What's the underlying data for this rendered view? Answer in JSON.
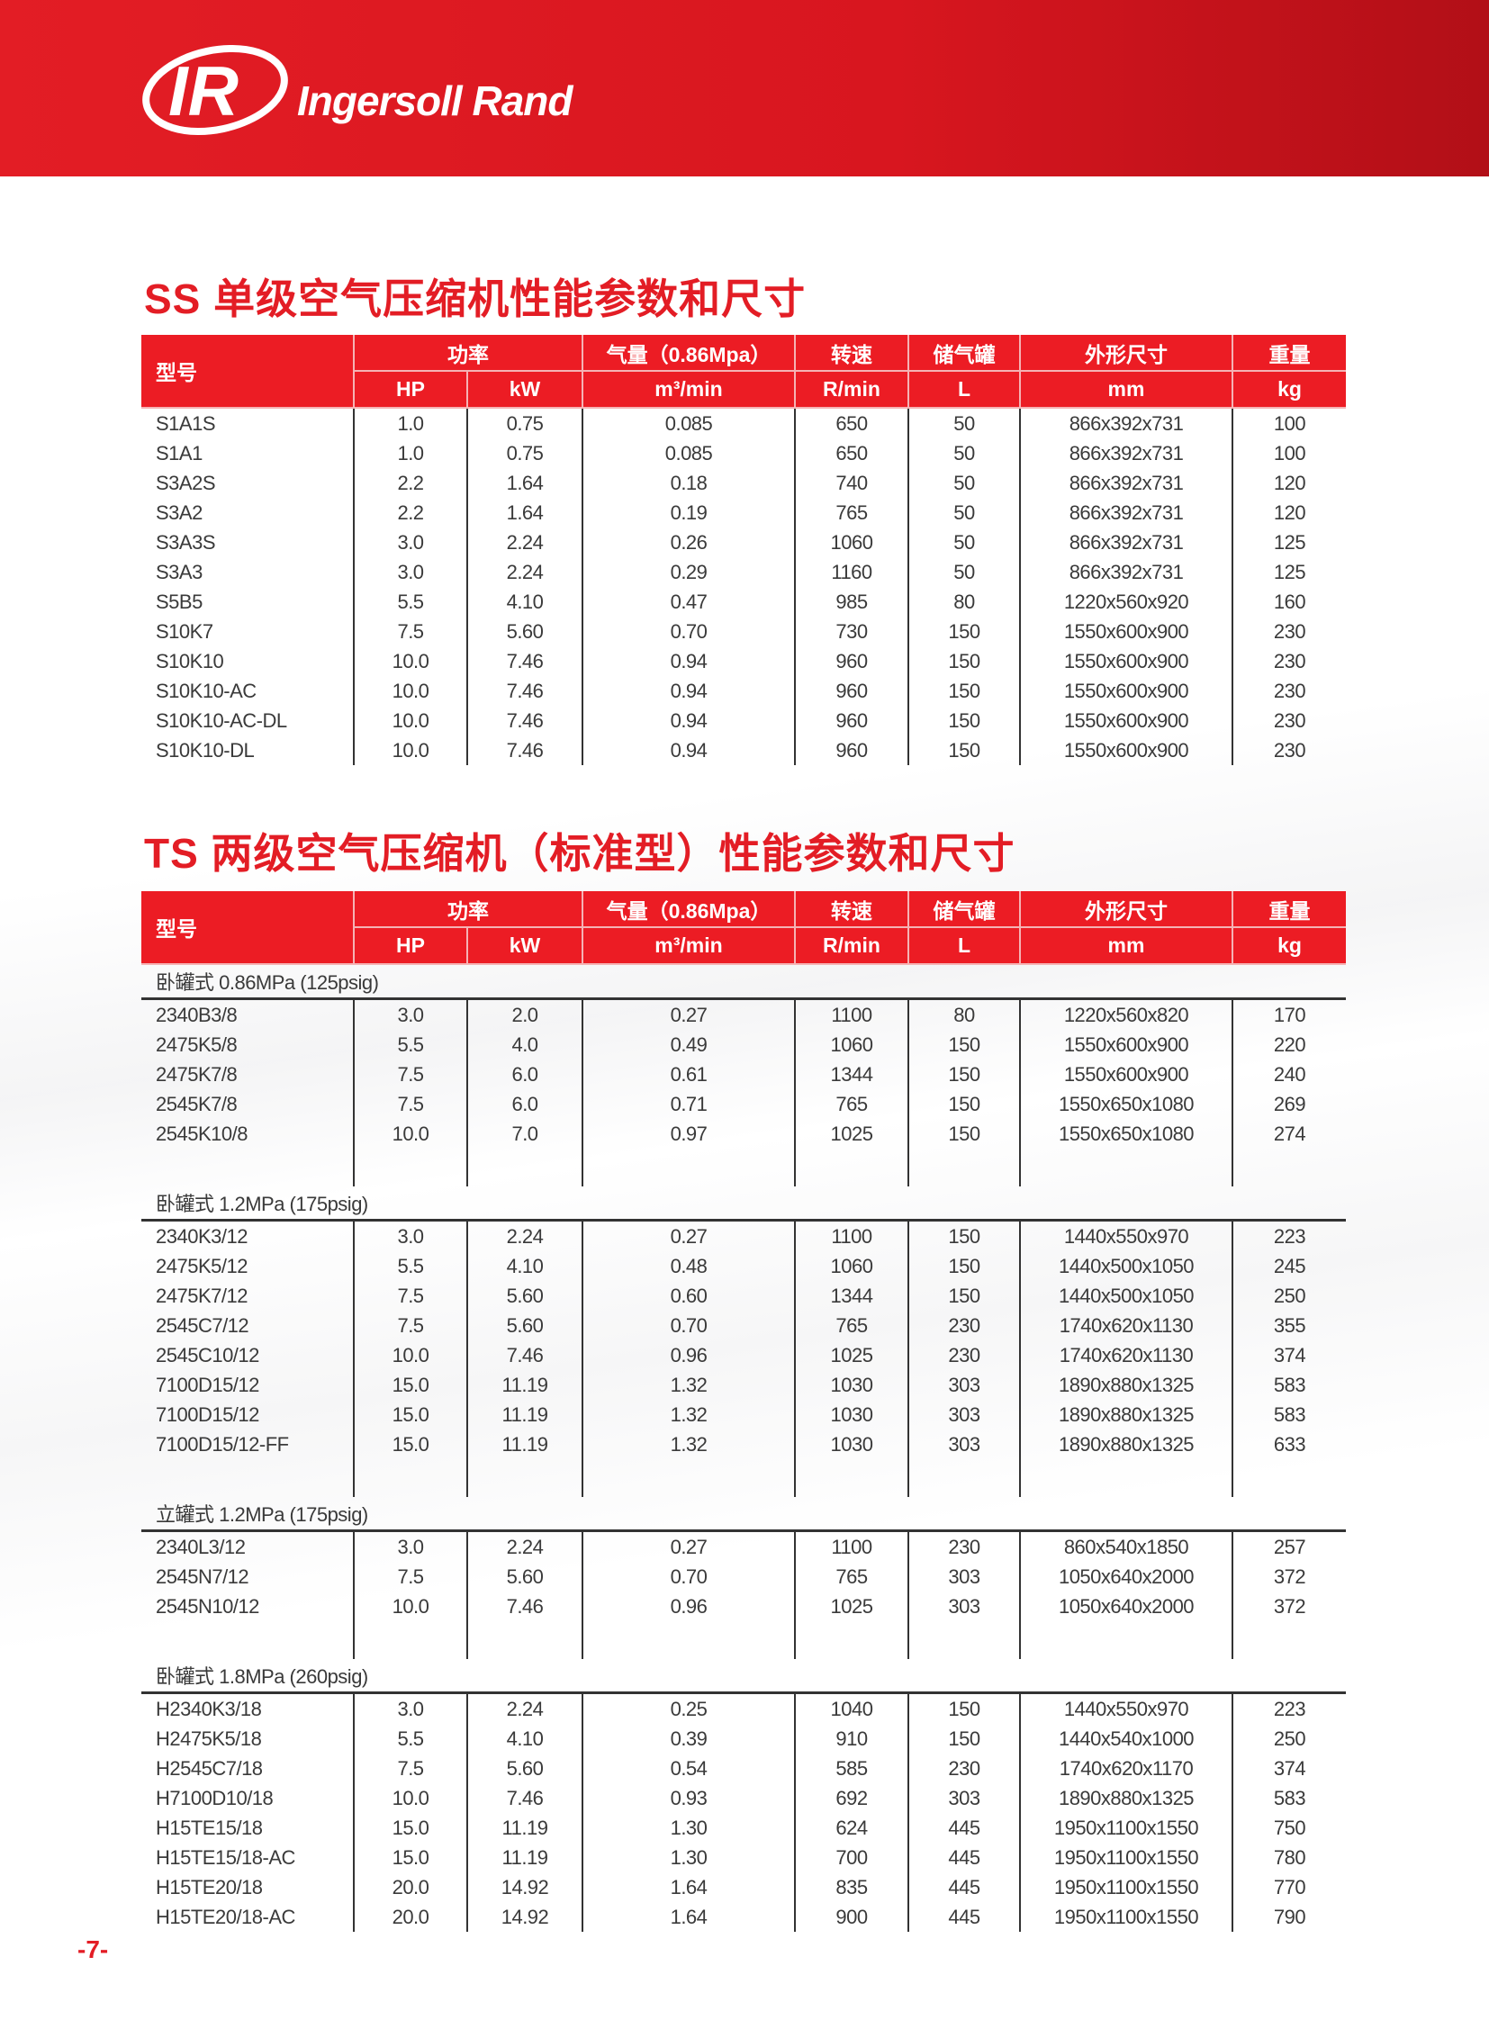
{
  "brand": {
    "name": "Ingersoll Rand",
    "logo_text": "IR",
    "color": "#e31d25"
  },
  "headers": {
    "model": "型号",
    "power": "功率",
    "airflow": "气量（0.86Mpa）",
    "speed": "转速",
    "tank": "储气罐",
    "dimensions": "外形尺寸",
    "weight": "重量",
    "hp": "HP",
    "kw": "kW",
    "m3min": "m³/min",
    "rmin": "R/min",
    "l": "L",
    "mm": "mm",
    "kg": "kg"
  },
  "ss": {
    "title": "SS 单级空气压缩机性能参数和尺寸",
    "rows": [
      [
        "S1A1S",
        "1.0",
        "0.75",
        "0.085",
        "650",
        "50",
        "866x392x731",
        "100"
      ],
      [
        "S1A1",
        "1.0",
        "0.75",
        "0.085",
        "650",
        "50",
        "866x392x731",
        "100"
      ],
      [
        "S3A2S",
        "2.2",
        "1.64",
        "0.18",
        "740",
        "50",
        "866x392x731",
        "120"
      ],
      [
        "S3A2",
        "2.2",
        "1.64",
        "0.19",
        "765",
        "50",
        "866x392x731",
        "120"
      ],
      [
        "S3A3S",
        "3.0",
        "2.24",
        "0.26",
        "1060",
        "50",
        "866x392x731",
        "125"
      ],
      [
        "S3A3",
        "3.0",
        "2.24",
        "0.29",
        "1160",
        "50",
        "866x392x731",
        "125"
      ],
      [
        "S5B5",
        "5.5",
        "4.10",
        "0.47",
        "985",
        "80",
        "1220x560x920",
        "160"
      ],
      [
        "S10K7",
        "7.5",
        "5.60",
        "0.70",
        "730",
        "150",
        "1550x600x900",
        "230"
      ],
      [
        "S10K10",
        "10.0",
        "7.46",
        "0.94",
        "960",
        "150",
        "1550x600x900",
        "230"
      ],
      [
        "S10K10-AC",
        "10.0",
        "7.46",
        "0.94",
        "960",
        "150",
        "1550x600x900",
        "230"
      ],
      [
        "S10K10-AC-DL",
        "10.0",
        "7.46",
        "0.94",
        "960",
        "150",
        "1550x600x900",
        "230"
      ],
      [
        "S10K10-DL",
        "10.0",
        "7.46",
        "0.94",
        "960",
        "150",
        "1550x600x900",
        "230"
      ]
    ]
  },
  "ts": {
    "title": "TS 两级空气压缩机（标准型）性能参数和尺寸",
    "groups": [
      {
        "label": "卧罐式 0.86MPa (125psig)",
        "rows": [
          [
            "2340B3/8",
            "3.0",
            "2.0",
            "0.27",
            "1100",
            "80",
            "1220x560x820",
            "170"
          ],
          [
            "2475K5/8",
            "5.5",
            "4.0",
            "0.49",
            "1060",
            "150",
            "1550x600x900",
            "220"
          ],
          [
            "2475K7/8",
            "7.5",
            "6.0",
            "0.61",
            "1344",
            "150",
            "1550x600x900",
            "240"
          ],
          [
            "2545K7/8",
            "7.5",
            "6.0",
            "0.71",
            "765",
            "150",
            "1550x650x1080",
            "269"
          ],
          [
            "2545K10/8",
            "10.0",
            "7.0",
            "0.97",
            "1025",
            "150",
            "1550x650x1080",
            "274"
          ]
        ]
      },
      {
        "label": "卧罐式 1.2MPa (175psig)",
        "rows": [
          [
            "2340K3/12",
            "3.0",
            "2.24",
            "0.27",
            "1100",
            "150",
            "1440x550x970",
            "223"
          ],
          [
            "2475K5/12",
            "5.5",
            "4.10",
            "0.48",
            "1060",
            "150",
            "1440x500x1050",
            "245"
          ],
          [
            "2475K7/12",
            "7.5",
            "5.60",
            "0.60",
            "1344",
            "150",
            "1440x500x1050",
            "250"
          ],
          [
            "2545C7/12",
            "7.5",
            "5.60",
            "0.70",
            "765",
            "230",
            "1740x620x1130",
            "355"
          ],
          [
            "2545C10/12",
            "10.0",
            "7.46",
            "0.96",
            "1025",
            "230",
            "1740x620x1130",
            "374"
          ],
          [
            "7100D15/12",
            "15.0",
            "11.19",
            "1.32",
            "1030",
            "303",
            "1890x880x1325",
            "583"
          ],
          [
            "7100D15/12",
            "15.0",
            "11.19",
            "1.32",
            "1030",
            "303",
            "1890x880x1325",
            "583"
          ],
          [
            "7100D15/12-FF",
            "15.0",
            "11.19",
            "1.32",
            "1030",
            "303",
            "1890x880x1325",
            "633"
          ]
        ]
      },
      {
        "label": "立罐式 1.2MPa (175psig)",
        "rows": [
          [
            "2340L3/12",
            "3.0",
            "2.24",
            "0.27",
            "1100",
            "230",
            "860x540x1850",
            "257"
          ],
          [
            "2545N7/12",
            "7.5",
            "5.60",
            "0.70",
            "765",
            "303",
            "1050x640x2000",
            "372"
          ],
          [
            "2545N10/12",
            "10.0",
            "7.46",
            "0.96",
            "1025",
            "303",
            "1050x640x2000",
            "372"
          ]
        ]
      },
      {
        "label": "卧罐式 1.8MPa (260psig)",
        "rows": [
          [
            "H2340K3/18",
            "3.0",
            "2.24",
            "0.25",
            "1040",
            "150",
            "1440x550x970",
            "223"
          ],
          [
            "H2475K5/18",
            "5.5",
            "4.10",
            "0.39",
            "910",
            "150",
            "1440x540x1000",
            "250"
          ],
          [
            "H2545C7/18",
            "7.5",
            "5.60",
            "0.54",
            "585",
            "230",
            "1740x620x1170",
            "374"
          ],
          [
            "H7100D10/18",
            "10.0",
            "7.46",
            "0.93",
            "692",
            "303",
            "1890x880x1325",
            "583"
          ],
          [
            "H15TE15/18",
            "15.0",
            "11.19",
            "1.30",
            "624",
            "445",
            "1950x1100x1550",
            "750"
          ],
          [
            "H15TE15/18-AC",
            "15.0",
            "11.19",
            "1.30",
            "700",
            "445",
            "1950x1100x1550",
            "780"
          ],
          [
            "H15TE20/18",
            "20.0",
            "14.92",
            "1.64",
            "835",
            "445",
            "1950x1100x1550",
            "770"
          ],
          [
            "H15TE20/18-AC",
            "20.0",
            "14.92",
            "1.64",
            "900",
            "445",
            "1950x1100x1550",
            "790"
          ]
        ]
      }
    ]
  },
  "page_number": "-7-"
}
